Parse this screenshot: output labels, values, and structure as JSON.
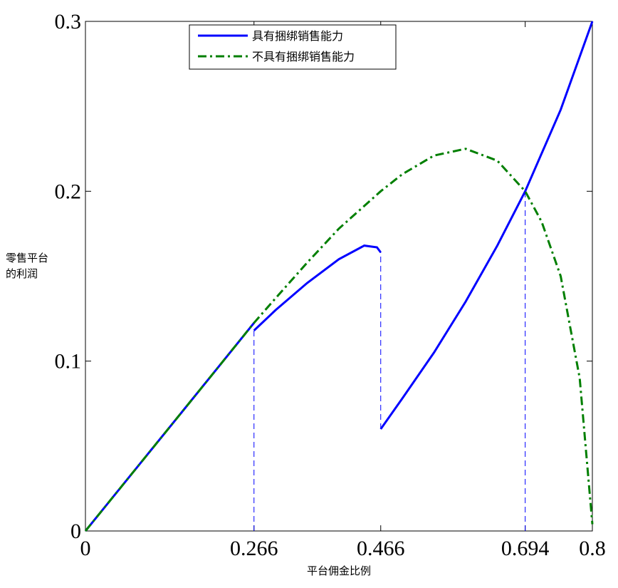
{
  "chart_data": {
    "type": "line",
    "xlabel": "平台佣金比例",
    "ylabel": [
      "零售平台",
      "的利润"
    ],
    "xlim": [
      0,
      0.8
    ],
    "ylim": [
      0,
      0.3
    ],
    "xticks": [
      0,
      0.266,
      0.466,
      0.694,
      0.8
    ],
    "yticks": [
      0,
      0.1,
      0.2,
      0.3
    ],
    "legend": "upper center",
    "series": [
      {
        "name": "具有捆绑销售能力",
        "color": "#0000ff",
        "style": "solid",
        "x": [
          0,
          0.1,
          0.2,
          0.266,
          0.266,
          0.266,
          0.3,
          0.35,
          0.4,
          0.44,
          0.46,
          0.466,
          0.466,
          0.466,
          0.5,
          0.55,
          0.6,
          0.65,
          0.694,
          0.75,
          0.8
        ],
        "values": [
          0,
          0.046,
          0.092,
          0.1225,
          null,
          0.118,
          0.13,
          0.146,
          0.16,
          0.168,
          0.167,
          0.164,
          null,
          0.06,
          0.078,
          0.105,
          0.135,
          0.168,
          0.2,
          0.248,
          0.3
        ]
      },
      {
        "name": "不具有捆绑销售能力",
        "color": "#007f00",
        "style": "dashdot",
        "x": [
          0,
          0.1,
          0.2,
          0.266,
          0.3,
          0.35,
          0.4,
          0.466,
          0.5,
          0.55,
          0.6,
          0.65,
          0.694,
          0.72,
          0.75,
          0.78,
          0.8
        ],
        "values": [
          0,
          0.046,
          0.092,
          0.1225,
          0.137,
          0.158,
          0.178,
          0.2,
          0.21,
          0.221,
          0.225,
          0.218,
          0.2,
          0.182,
          0.15,
          0.09,
          0.004
        ]
      }
    ],
    "vlines": [
      {
        "x": 0.266,
        "y": [
          0,
          0.118
        ],
        "color": "#0000ff"
      },
      {
        "x": 0.466,
        "y": [
          0.06,
          0.164
        ],
        "color": "#0000ff"
      },
      {
        "x": 0.694,
        "y": [
          0,
          0.2
        ],
        "color": "#0000ff"
      }
    ]
  }
}
